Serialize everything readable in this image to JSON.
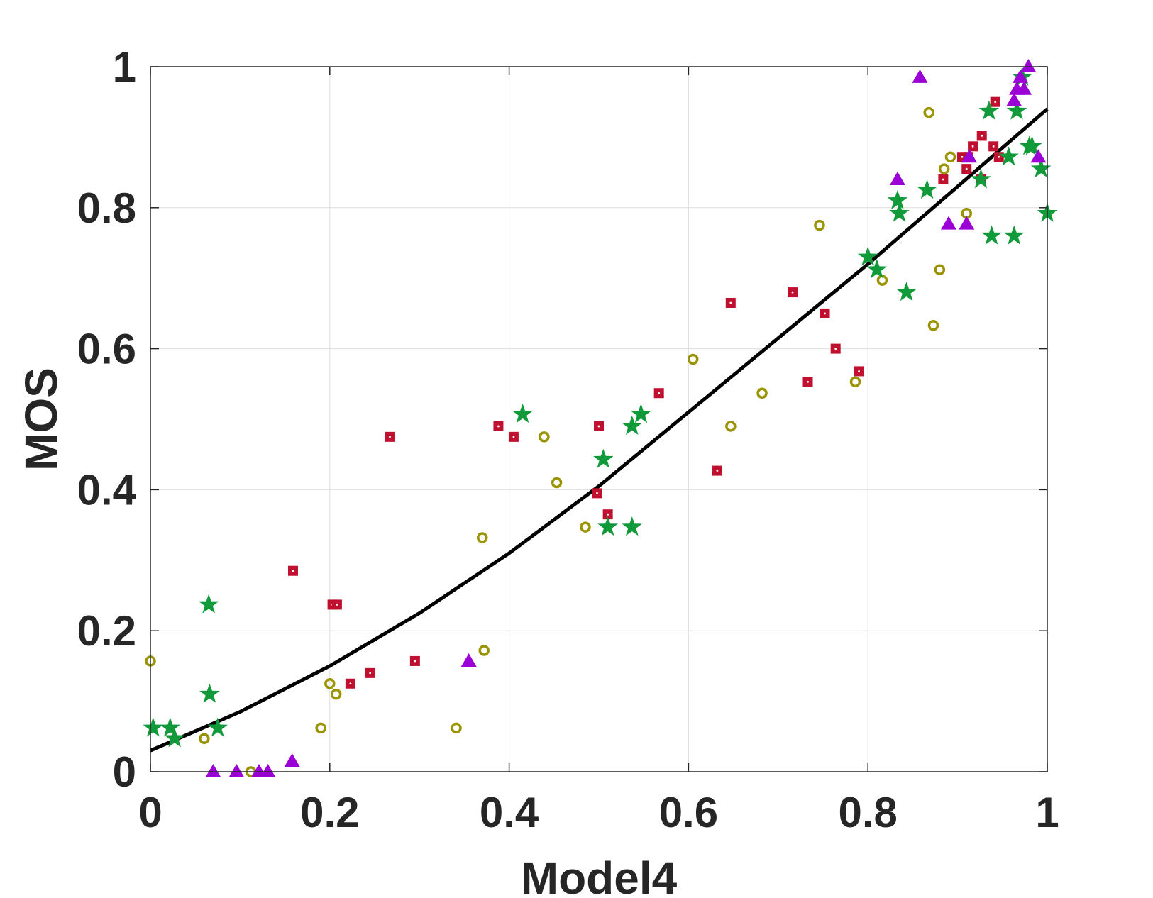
{
  "chart_data": {
    "type": "scatter",
    "title": "",
    "xlabel": "Model4",
    "ylabel": "MOS",
    "xlim": [
      0,
      1
    ],
    "ylim": [
      0,
      1
    ],
    "grid": true,
    "xticks": [
      0,
      0.2,
      0.4,
      0.6,
      0.8,
      1
    ],
    "yticks": [
      0,
      0.2,
      0.4,
      0.6,
      0.8,
      1
    ],
    "xtick_labels": [
      "0",
      "0.2",
      "0.4",
      "0.6",
      "0.8",
      "1"
    ],
    "ytick_labels": [
      "0",
      "0.2",
      "0.4",
      "0.6",
      "0.8",
      "1"
    ],
    "fit_curve": {
      "name": "fitted curve",
      "color": "#000000",
      "x": [
        0,
        0.1,
        0.2,
        0.3,
        0.4,
        0.5,
        0.6,
        0.7,
        0.8,
        0.9,
        1.0
      ],
      "y": [
        0.03,
        0.085,
        0.15,
        0.225,
        0.31,
        0.405,
        0.51,
        0.615,
        0.72,
        0.83,
        0.94
      ]
    },
    "series": [
      {
        "name": "squares",
        "marker": "square",
        "color": "#c0102f",
        "x": [
          0.159,
          0.203,
          0.208,
          0.223,
          0.245,
          0.267,
          0.295,
          0.388,
          0.405,
          0.498,
          0.5,
          0.51,
          0.567,
          0.632,
          0.647,
          0.716,
          0.733,
          0.752,
          0.764,
          0.79,
          0.884,
          0.905,
          0.91,
          0.912,
          0.917,
          0.926,
          0.927,
          0.94,
          0.942,
          0.946
        ],
        "y": [
          0.285,
          0.237,
          0.237,
          0.125,
          0.14,
          0.475,
          0.157,
          0.49,
          0.475,
          0.395,
          0.49,
          0.365,
          0.537,
          0.427,
          0.665,
          0.68,
          0.553,
          0.65,
          0.6,
          0.568,
          0.84,
          0.872,
          0.855,
          0.872,
          0.887,
          0.84,
          0.902,
          0.887,
          0.95,
          0.872
        ]
      },
      {
        "name": "circles",
        "marker": "circle",
        "color": "#9a9400",
        "x": [
          0,
          0.06,
          0.112,
          0.19,
          0.2,
          0.207,
          0.341,
          0.37,
          0.372,
          0.439,
          0.453,
          0.485,
          0.605,
          0.647,
          0.682,
          0.746,
          0.786,
          0.816,
          0.868,
          0.873,
          0.88,
          0.885,
          0.892,
          0.91
        ],
        "y": [
          0.157,
          0.047,
          0,
          0.062,
          0.125,
          0.11,
          0.062,
          0.332,
          0.172,
          0.475,
          0.41,
          0.347,
          0.585,
          0.49,
          0.537,
          0.775,
          0.553,
          0.697,
          0.935,
          0.633,
          0.712,
          0.855,
          0.872,
          0.792
        ]
      },
      {
        "name": "stars",
        "marker": "star",
        "color": "#119a3a",
        "x": [
          0.003,
          0.022,
          0.027,
          0.065,
          0.066,
          0.075,
          0.415,
          0.505,
          0.51,
          0.537,
          0.537,
          0.547,
          0.8,
          0.81,
          0.833,
          0.835,
          0.843,
          0.866,
          0.926,
          0.935,
          0.938,
          0.957,
          0.963,
          0.966,
          0.972,
          0.98,
          0.983,
          0.993,
          1.0
        ],
        "y": [
          0.062,
          0.062,
          0.047,
          0.237,
          0.11,
          0.062,
          0.507,
          0.443,
          0.347,
          0.347,
          0.49,
          0.507,
          0.73,
          0.712,
          0.81,
          0.792,
          0.68,
          0.825,
          0.84,
          0.937,
          0.76,
          0.872,
          0.76,
          0.937,
          0.985,
          0.887,
          0.887,
          0.855,
          0.792
        ]
      },
      {
        "name": "triangles",
        "marker": "triangle",
        "color": "#9b00d6",
        "x": [
          0.07,
          0.096,
          0.121,
          0.131,
          0.158,
          0.355,
          0.833,
          0.858,
          0.89,
          0.91,
          0.913,
          0.963,
          0.966,
          0.97,
          0.974,
          0.979,
          0.99
        ],
        "y": [
          0,
          0,
          0,
          0,
          0.015,
          0.157,
          0.84,
          0.985,
          0.777,
          0.777,
          0.872,
          0.952,
          0.968,
          0.985,
          0.968,
          1.0,
          0.872
        ]
      }
    ]
  }
}
